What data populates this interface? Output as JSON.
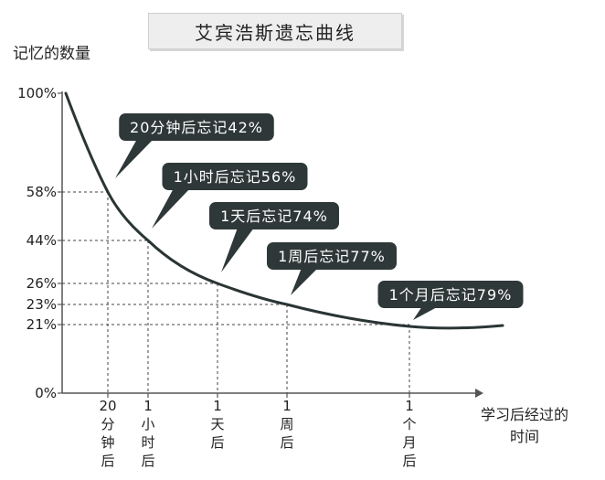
{
  "chart_data": {
    "type": "line",
    "title": "艾宾浩斯遗忘曲线",
    "ylabel": "记忆的数量",
    "xlabel": "学习后经过的时间",
    "y_ticks": [
      "100%",
      "58%",
      "44%",
      "26%",
      "23%",
      "21%",
      "0%"
    ],
    "y_tick_values": [
      100,
      58,
      44,
      26,
      23,
      21,
      0
    ],
    "ylim": [
      0,
      100
    ],
    "categories": [
      "20分钟后",
      "1小时后",
      "1天后",
      "1周后",
      "1个月后"
    ],
    "x_tick_labels": [
      [
        "20",
        "分",
        "钟",
        "后"
      ],
      [
        "1",
        "小",
        "时",
        "后"
      ],
      [
        "1",
        "天",
        "后"
      ],
      [
        "1",
        "周",
        "后"
      ],
      [
        "1",
        "个",
        "月",
        "后"
      ]
    ],
    "series": [
      {
        "values": [
          58,
          44,
          26,
          23,
          21
        ]
      }
    ],
    "annotations": [
      "20分钟后忘记42%",
      "1小时后忘记56%",
      "1天后忘记74%",
      "1周后忘记77%",
      "1个月后忘记79%"
    ],
    "colors": {
      "curve": "#2b3535",
      "callout": "#2f3838",
      "grid": "#444444"
    }
  }
}
